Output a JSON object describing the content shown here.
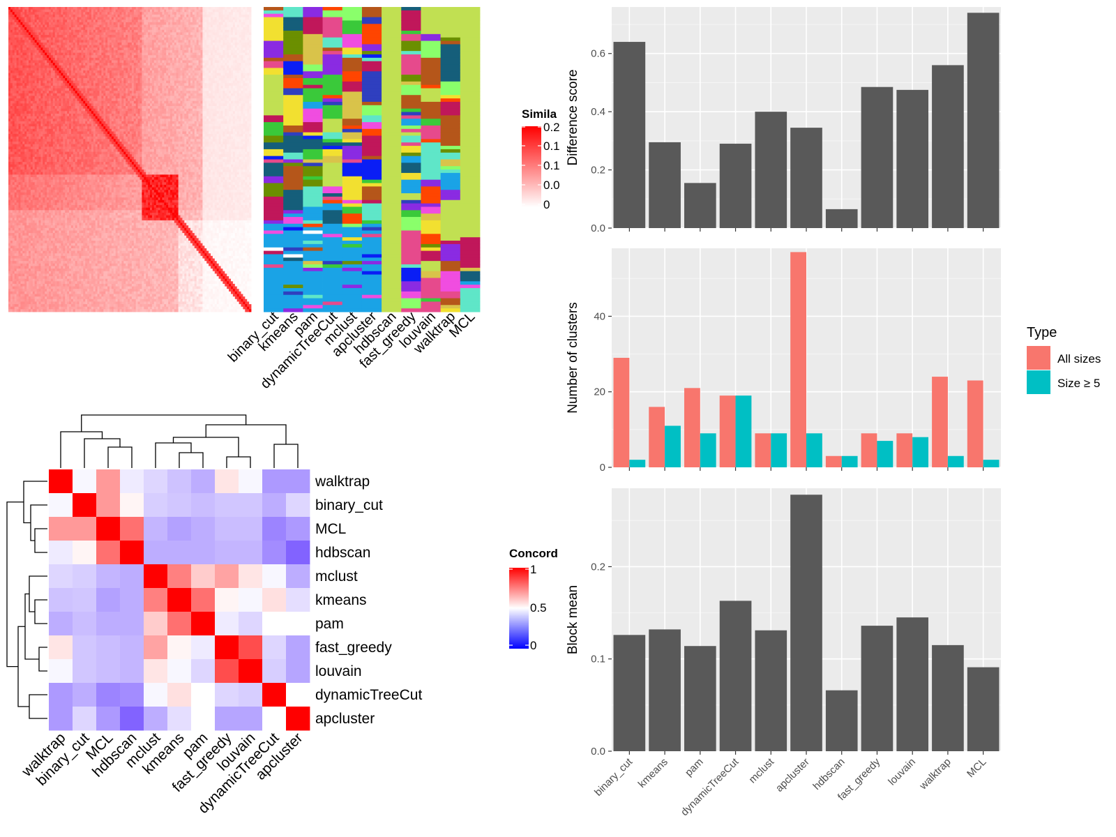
{
  "similarity_heatmap": {
    "legend_title": "Simila",
    "legend_ticks": [
      "0.2",
      "0.1",
      "0.1",
      "0.0",
      "0"
    ],
    "matrix_size": 120,
    "method_labels": [
      "binary_cut",
      "kmeans",
      "pam",
      "dynamicTreeCut",
      "mclust",
      "apcluster",
      "hdbscan",
      "fast_greedy",
      "louvain",
      "walktrap",
      "MCL"
    ],
    "colors": {
      "high": "#ff0000",
      "low": "#ffffff"
    },
    "cluster_palette": [
      "#c1e052",
      "#1aa3e6",
      "#8a2be2",
      "#c0175a",
      "#6b8f00",
      "#0a1ef5",
      "#5fe6c8",
      "#f04de0",
      "#8aff6b",
      "#b5561a",
      "#ff4500",
      "#d9c34a",
      "#2f3fbf",
      "#3ac93a",
      "#f2e030",
      "#155e7a",
      "#e64a8c",
      "#ffffff"
    ]
  },
  "concordance_heatmap": {
    "legend_title": "Concord",
    "legend_ticks": [
      "1",
      "0.5",
      "0"
    ],
    "row_labels": [
      "walktrap",
      "binary_cut",
      "MCL",
      "hdbscan",
      "mclust",
      "kmeans",
      "pam",
      "fast_greedy",
      "louvain",
      "dynamicTreeCut",
      "apcluster"
    ],
    "col_labels": [
      "walktrap",
      "binary_cut",
      "MCL",
      "hdbscan",
      "mclust",
      "kmeans",
      "pam",
      "fast_greedy",
      "louvain",
      "dynamicTreeCut",
      "apcluster"
    ],
    "colors": {
      "high": "#ff0000",
      "mid": "#ffffff",
      "low": "#0000ff"
    }
  },
  "legend": {
    "title": "Type",
    "items": [
      {
        "label": "All sizes",
        "color": "#f8766d"
      },
      {
        "label": "Size ≥ 5",
        "color": "#00bfc4"
      }
    ]
  },
  "chart_data": [
    {
      "type": "heatmap",
      "name": "concordance",
      "rows": [
        "walktrap",
        "binary_cut",
        "MCL",
        "hdbscan",
        "mclust",
        "kmeans",
        "pam",
        "fast_greedy",
        "louvain",
        "dynamicTreeCut",
        "apcluster"
      ],
      "cols": [
        "walktrap",
        "binary_cut",
        "MCL",
        "hdbscan",
        "mclust",
        "kmeans",
        "pam",
        "fast_greedy",
        "louvain",
        "dynamicTreeCut",
        "apcluster"
      ],
      "values": [
        [
          1.0,
          0.48,
          0.7,
          0.45,
          0.4,
          0.35,
          0.3,
          0.55,
          0.48,
          0.25,
          0.25
        ],
        [
          0.48,
          1.0,
          0.7,
          0.52,
          0.38,
          0.36,
          0.34,
          0.36,
          0.36,
          0.3,
          0.4
        ],
        [
          0.7,
          0.7,
          1.0,
          0.78,
          0.32,
          0.27,
          0.3,
          0.34,
          0.34,
          0.2,
          0.25
        ],
        [
          0.45,
          0.52,
          0.78,
          1.0,
          0.3,
          0.3,
          0.3,
          0.32,
          0.32,
          0.22,
          0.12
        ],
        [
          0.4,
          0.38,
          0.32,
          0.3,
          1.0,
          0.75,
          0.6,
          0.68,
          0.55,
          0.48,
          0.3
        ],
        [
          0.35,
          0.36,
          0.27,
          0.3,
          0.75,
          1.0,
          0.78,
          0.52,
          0.48,
          0.56,
          0.42
        ],
        [
          0.3,
          0.34,
          0.3,
          0.3,
          0.6,
          0.78,
          1.0,
          0.45,
          0.4,
          0.5,
          0.5
        ],
        [
          0.55,
          0.36,
          0.34,
          0.32,
          0.68,
          0.52,
          0.45,
          1.0,
          0.85,
          0.4,
          0.28
        ],
        [
          0.48,
          0.36,
          0.34,
          0.32,
          0.55,
          0.48,
          0.4,
          0.85,
          1.0,
          0.38,
          0.28
        ],
        [
          0.25,
          0.3,
          0.2,
          0.22,
          0.48,
          0.56,
          0.5,
          0.4,
          0.38,
          1.0,
          0.5
        ],
        [
          0.25,
          0.4,
          0.25,
          0.12,
          0.3,
          0.42,
          0.5,
          0.28,
          0.28,
          0.5,
          1.0
        ]
      ],
      "legend_title": "Concord",
      "range": [
        0,
        1
      ]
    },
    {
      "type": "bar",
      "name": "difference_score",
      "categories": [
        "binary_cut",
        "kmeans",
        "pam",
        "dynamicTreeCut",
        "mclust",
        "apcluster",
        "hdbscan",
        "fast_greedy",
        "louvain",
        "walktrap",
        "MCL"
      ],
      "values": [
        0.64,
        0.295,
        0.155,
        0.29,
        0.4,
        0.345,
        0.065,
        0.485,
        0.475,
        0.56,
        0.74
      ],
      "ylabel": "Difference score",
      "ylim": [
        0,
        0.76
      ],
      "yticks": [
        0.0,
        0.2,
        0.4,
        0.6
      ],
      "ytick_labels": [
        "0.0",
        "0.2",
        "0.4",
        "0.6"
      ],
      "bar_color": "#595959",
      "grid": true
    },
    {
      "type": "bar",
      "name": "number_of_clusters",
      "categories": [
        "binary_cut",
        "kmeans",
        "pam",
        "dynamicTreeCut",
        "mclust",
        "apcluster",
        "hdbscan",
        "fast_greedy",
        "louvain",
        "walktrap",
        "MCL"
      ],
      "series": [
        {
          "name": "All sizes",
          "values": [
            29,
            16,
            21,
            19,
            9,
            57,
            3,
            9,
            9,
            24,
            23
          ]
        },
        {
          "name": "Size ≥ 5",
          "values": [
            2,
            11,
            9,
            19,
            9,
            9,
            3,
            7,
            8,
            3,
            2
          ]
        }
      ],
      "ylabel": "Number of clusters",
      "ylim": [
        0,
        58
      ],
      "yticks": [
        0,
        20,
        40
      ],
      "ytick_labels": [
        "0",
        "20",
        "40"
      ],
      "legend_title": "Type",
      "legend_position": "right",
      "grid": true
    },
    {
      "type": "bar",
      "name": "block_mean",
      "categories": [
        "binary_cut",
        "kmeans",
        "pam",
        "dynamicTreeCut",
        "mclust",
        "apcluster",
        "hdbscan",
        "fast_greedy",
        "louvain",
        "walktrap",
        "MCL"
      ],
      "values": [
        0.126,
        0.132,
        0.114,
        0.163,
        0.131,
        0.278,
        0.066,
        0.136,
        0.145,
        0.115,
        0.091
      ],
      "ylabel": "Block mean",
      "ylim": [
        0,
        0.285
      ],
      "yticks": [
        0.0,
        0.1,
        0.2
      ],
      "ytick_labels": [
        "0.0",
        "0.1",
        "0.2"
      ],
      "bar_color": "#595959",
      "grid": true
    }
  ]
}
